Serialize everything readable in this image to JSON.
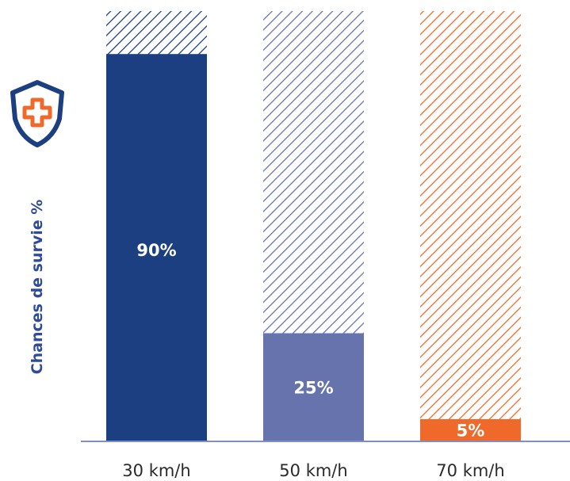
{
  "chart_data": {
    "type": "bar",
    "categories": [
      "30 km/h",
      "50 km/h",
      "70 km/h"
    ],
    "values": [
      90,
      25,
      5
    ],
    "value_labels": [
      "90%",
      "25%",
      "5%"
    ],
    "ylabel": "Chances de survie %",
    "ylim": [
      0,
      100
    ],
    "grid": false,
    "legend": "none",
    "colors": {
      "bars": [
        "#1b3f80",
        "#6673ad",
        "#ef6a2a"
      ],
      "hatch": [
        "#1b3f80",
        "#6673ad",
        "#ef6a2a"
      ],
      "axis": "#7f8fc4",
      "icon_shield": "#1b3f80",
      "icon_cross": "#ef6a2a"
    },
    "icon": "shield-medical-cross-icon"
  }
}
